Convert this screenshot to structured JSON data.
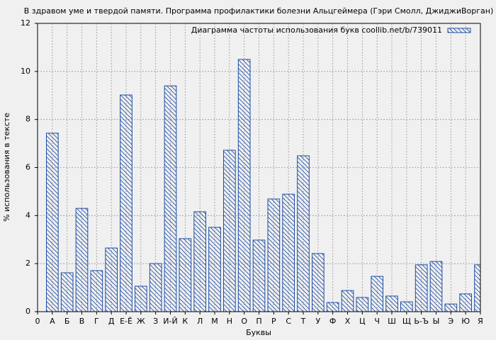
{
  "chart_data": {
    "type": "bar",
    "title": "В здравом уме и твердой памяти. Программа профилактики болезни Альцгеймера (Гэри Смолл, ДжиджиВорган)",
    "x_label": "Буквы",
    "y_label": "% использования в тексте",
    "categories": [
      "0",
      "А",
      "Б",
      "В",
      "Г",
      "Д",
      "Е-Ё",
      "Ж",
      "З",
      "И-Й",
      "К",
      "Л",
      "М",
      "Н",
      "О",
      "П",
      "Р",
      "С",
      "Т",
      "У",
      "Ф",
      "Х",
      "Ц",
      "Ч",
      "Ш",
      "Щ",
      "Ь-Ъ",
      "Ы",
      "Э",
      "Ю",
      "Я"
    ],
    "series": [
      {
        "name": "Диаграмма частоты использования букв coollib.net/b/739011",
        "color": "#1f4ea3",
        "values": [
          null,
          7.43,
          1.62,
          4.3,
          1.71,
          2.65,
          9.02,
          1.06,
          2.0,
          9.4,
          3.04,
          4.16,
          3.51,
          6.72,
          10.5,
          2.98,
          4.69,
          4.89,
          6.49,
          2.42,
          0.38,
          0.88,
          0.59,
          1.47,
          0.65,
          0.41,
          1.95,
          2.09,
          0.32,
          0.74,
          1.95
        ]
      }
    ],
    "ylim": [
      0,
      12
    ],
    "yticks": [
      0,
      2,
      4,
      6,
      8,
      10,
      12
    ],
    "grid": true,
    "legend": "upper right"
  }
}
